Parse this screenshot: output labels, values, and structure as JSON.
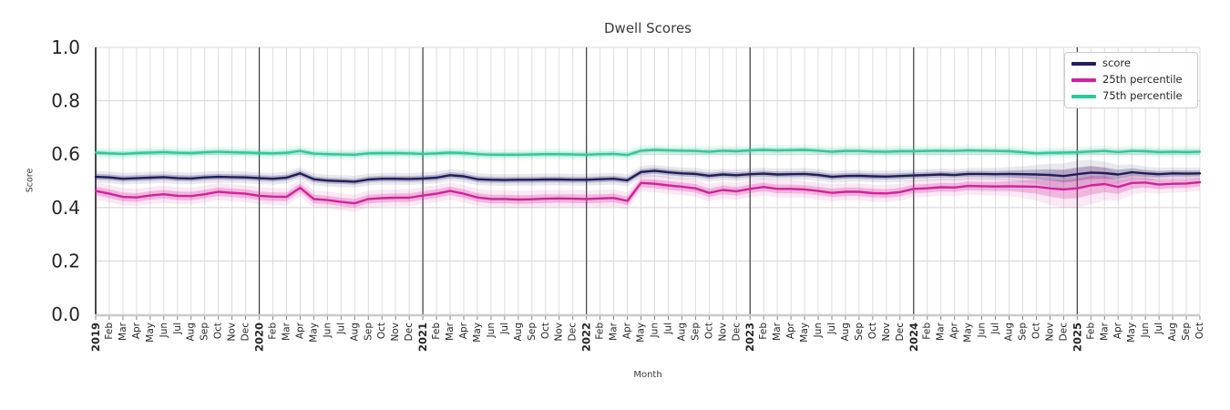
{
  "chart_data": {
    "type": "line",
    "title": "Dwell Scores",
    "xlabel": "Month",
    "ylabel": "Score",
    "ylim": [
      0.0,
      1.0
    ],
    "yticks": [
      "0.0",
      "0.2",
      "0.4",
      "0.6",
      "0.8",
      "1.0"
    ],
    "ytick_values": [
      0.0,
      0.2,
      0.4,
      0.6,
      0.8,
      1.0
    ],
    "grid": "on",
    "legend_position": "upper right",
    "x_labels": [
      "2019",
      "Feb",
      "Mar",
      "Apr",
      "May",
      "Jun",
      "Jul",
      "Aug",
      "Sep",
      "Oct",
      "Nov",
      "Dec",
      "2020",
      "Feb",
      "Mar",
      "Apr",
      "May",
      "Jun",
      "Jul",
      "Aug",
      "Sep",
      "Oct",
      "Nov",
      "Dec",
      "2021",
      "Feb",
      "Mar",
      "Apr",
      "May",
      "Jun",
      "Jul",
      "Aug",
      "Sep",
      "Oct",
      "Nov",
      "Dec",
      "2022",
      "Feb",
      "Mar",
      "Apr",
      "May",
      "Jun",
      "Jul",
      "Aug",
      "Sep",
      "Oct",
      "Nov",
      "Dec",
      "2023",
      "Feb",
      "Mar",
      "Apr",
      "May",
      "Jun",
      "Jul",
      "Aug",
      "Sep",
      "Oct",
      "Nov",
      "Dec",
      "2024",
      "Feb",
      "Mar",
      "Apr",
      "May",
      "Jun",
      "Jul",
      "Aug",
      "Sep",
      "Oct",
      "Nov",
      "Dec",
      "2025",
      "Feb",
      "Mar",
      "Apr",
      "May",
      "Jun",
      "Jul",
      "Aug",
      "Sep",
      "Oct"
    ],
    "year_label_indices": [
      0,
      12,
      24,
      36,
      48,
      60,
      72
    ],
    "series": [
      {
        "name": "score",
        "color": "#201d5c",
        "ci": 0.011,
        "values": [
          0.515,
          0.513,
          0.508,
          0.51,
          0.512,
          0.514,
          0.51,
          0.509,
          0.513,
          0.515,
          0.514,
          0.513,
          0.51,
          0.508,
          0.512,
          0.528,
          0.506,
          0.501,
          0.499,
          0.497,
          0.505,
          0.508,
          0.508,
          0.507,
          0.509,
          0.512,
          0.521,
          0.517,
          0.506,
          0.504,
          0.503,
          0.504,
          0.504,
          0.505,
          0.505,
          0.504,
          0.504,
          0.506,
          0.508,
          0.502,
          0.533,
          0.538,
          0.532,
          0.528,
          0.526,
          0.519,
          0.524,
          0.521,
          0.525,
          0.527,
          0.524,
          0.525,
          0.526,
          0.522,
          0.515,
          0.518,
          0.519,
          0.517,
          0.516,
          0.518,
          0.52,
          0.522,
          0.524,
          0.522,
          0.526,
          0.526,
          0.525,
          0.526,
          0.525,
          0.524,
          0.522,
          0.518,
          0.525,
          0.531,
          0.529,
          0.524,
          0.532,
          0.528,
          0.525,
          0.528,
          0.527,
          0.528
        ]
      },
      {
        "name": "25th percentile",
        "color": "#d3219c",
        "ci": 0.016,
        "values": [
          0.462,
          0.452,
          0.44,
          0.438,
          0.445,
          0.45,
          0.444,
          0.443,
          0.45,
          0.459,
          0.455,
          0.452,
          0.444,
          0.441,
          0.44,
          0.474,
          0.432,
          0.428,
          0.421,
          0.416,
          0.432,
          0.435,
          0.437,
          0.437,
          0.445,
          0.452,
          0.462,
          0.452,
          0.438,
          0.432,
          0.432,
          0.43,
          0.431,
          0.433,
          0.434,
          0.433,
          0.432,
          0.434,
          0.436,
          0.425,
          0.492,
          0.489,
          0.483,
          0.478,
          0.472,
          0.455,
          0.466,
          0.461,
          0.47,
          0.477,
          0.47,
          0.47,
          0.468,
          0.462,
          0.455,
          0.459,
          0.459,
          0.454,
          0.453,
          0.458,
          0.47,
          0.472,
          0.476,
          0.475,
          0.481,
          0.48,
          0.479,
          0.48,
          0.479,
          0.478,
          0.472,
          0.468,
          0.472,
          0.483,
          0.488,
          0.477,
          0.492,
          0.494,
          0.486,
          0.489,
          0.49,
          0.495
        ]
      },
      {
        "name": "75th percentile",
        "color": "#2fc79b",
        "ci": 0.01,
        "values": [
          0.606,
          0.603,
          0.601,
          0.604,
          0.606,
          0.608,
          0.605,
          0.604,
          0.607,
          0.609,
          0.607,
          0.606,
          0.604,
          0.603,
          0.605,
          0.612,
          0.602,
          0.6,
          0.599,
          0.598,
          0.603,
          0.604,
          0.604,
          0.603,
          0.601,
          0.603,
          0.606,
          0.604,
          0.6,
          0.598,
          0.598,
          0.598,
          0.599,
          0.6,
          0.6,
          0.599,
          0.598,
          0.6,
          0.601,
          0.597,
          0.613,
          0.616,
          0.614,
          0.613,
          0.612,
          0.609,
          0.613,
          0.611,
          0.614,
          0.616,
          0.614,
          0.615,
          0.616,
          0.613,
          0.609,
          0.612,
          0.612,
          0.61,
          0.609,
          0.611,
          0.611,
          0.612,
          0.613,
          0.612,
          0.614,
          0.613,
          0.612,
          0.611,
          0.607,
          0.603,
          0.605,
          0.606,
          0.607,
          0.61,
          0.612,
          0.608,
          0.612,
          0.611,
          0.608,
          0.609,
          0.608,
          0.609
        ]
      }
    ],
    "band_widening": {
      "series": [
        "score",
        "25th percentile"
      ],
      "peak_index": 72,
      "sigma": 3.5,
      "max_factor": 2.3
    }
  },
  "colors": {
    "month_grid": "#dddddd",
    "h_grid": "#d9d9d9",
    "year_line": "#3a3a3a",
    "left_spine": "#333333",
    "bottom_spine": "#c9c9c9",
    "tick_mark": "#777777",
    "tick_text": "#262626",
    "title_text": "#3a3a3a",
    "legend_text": "#262626",
    "background": "#ffffff"
  }
}
